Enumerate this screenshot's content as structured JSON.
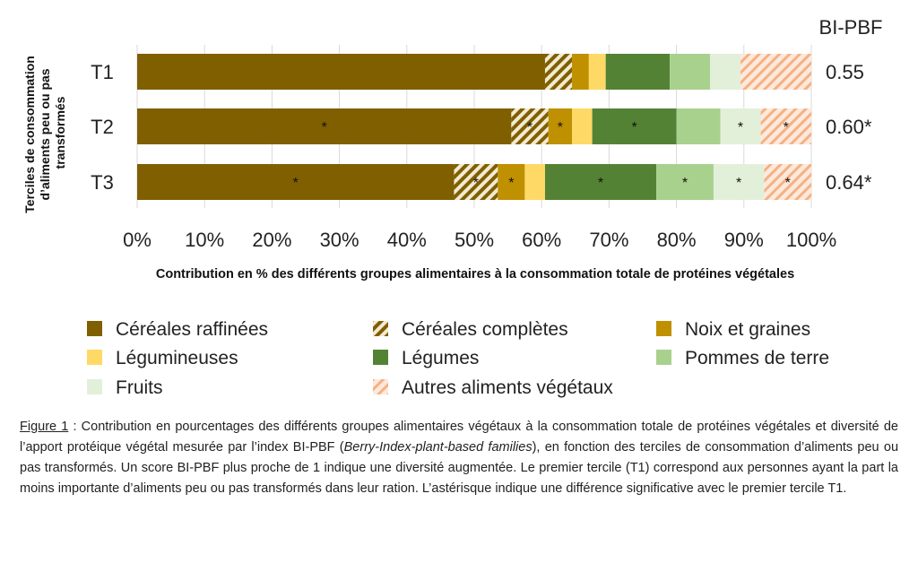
{
  "chart_data": {
    "type": "bar",
    "orientation": "horizontal-stacked-100",
    "ylabel": "Terciles de consommation d’aliments peu ou pas transformés",
    "xlabel": "Contribution en % des différents groupes alimentaires à la consommation totale de protéines végétales",
    "xlim": [
      0,
      100
    ],
    "xticks": [
      "0%",
      "10%",
      "20%",
      "30%",
      "40%",
      "50%",
      "60%",
      "70%",
      "80%",
      "90%",
      "100%"
    ],
    "categories": [
      "T1",
      "T2",
      "T3"
    ],
    "score_header": "BI-PBF",
    "scores": [
      "0.55",
      "0.60*",
      "0.64*"
    ],
    "star_symbol": "*",
    "legend_position": "bottom",
    "series": [
      {
        "name": "Céréales raffinées",
        "color": "#7f5f00",
        "pattern": "solid",
        "values": [
          60.5,
          55.5,
          47
        ],
        "significant": [
          false,
          true,
          true
        ]
      },
      {
        "name": "Céréales complètes",
        "color": "#7f5f00",
        "pattern": "hatch",
        "values": [
          4,
          5.5,
          6.5
        ],
        "significant": [
          false,
          true,
          true
        ]
      },
      {
        "name": "Noix et graines",
        "color": "#bf9000",
        "pattern": "solid",
        "values": [
          2.5,
          3.5,
          4
        ],
        "significant": [
          false,
          true,
          true
        ]
      },
      {
        "name": "Légumineuses",
        "color": "#ffd966",
        "pattern": "solid",
        "values": [
          2.5,
          3,
          3
        ],
        "significant": [
          false,
          false,
          false
        ]
      },
      {
        "name": "Légumes",
        "color": "#548235",
        "pattern": "solid",
        "values": [
          9.5,
          12.5,
          16.5
        ],
        "significant": [
          false,
          true,
          true
        ]
      },
      {
        "name": "Pommes de terre",
        "color": "#a9d18e",
        "pattern": "solid",
        "values": [
          6,
          6.5,
          8.5
        ],
        "significant": [
          false,
          false,
          true
        ]
      },
      {
        "name": "Fruits",
        "color": "#e2f0d9",
        "pattern": "solid",
        "values": [
          4.5,
          6,
          7.5
        ],
        "significant": [
          false,
          true,
          true
        ]
      },
      {
        "name": "Autres aliments végétaux",
        "color": "#f4b183",
        "pattern": "hatch-light",
        "values": [
          10.5,
          7.5,
          7
        ],
        "significant": [
          false,
          true,
          true
        ]
      }
    ]
  },
  "caption": {
    "fig_label": "Figure 1",
    "text": " :  Contribution en pourcentages des différents groupes alimentaires végétaux à la consommation totale de protéines végétales et diversité de l’apport protéique végétal mesurée par l’index BI-PBF (",
    "italic": "Berry-Index-plant-based families",
    "text2": "), en fonction des terciles de consommation d’aliments peu ou pas transformés. Un score BI-PBF plus proche de 1 indique une diversité augmentée. Le premier tercile (T1) correspond aux personnes ayant la part la moins importante d’aliments peu ou pas transformés dans leur ration. L’astérisque indique une différence significative avec le premier tercile T1."
  }
}
